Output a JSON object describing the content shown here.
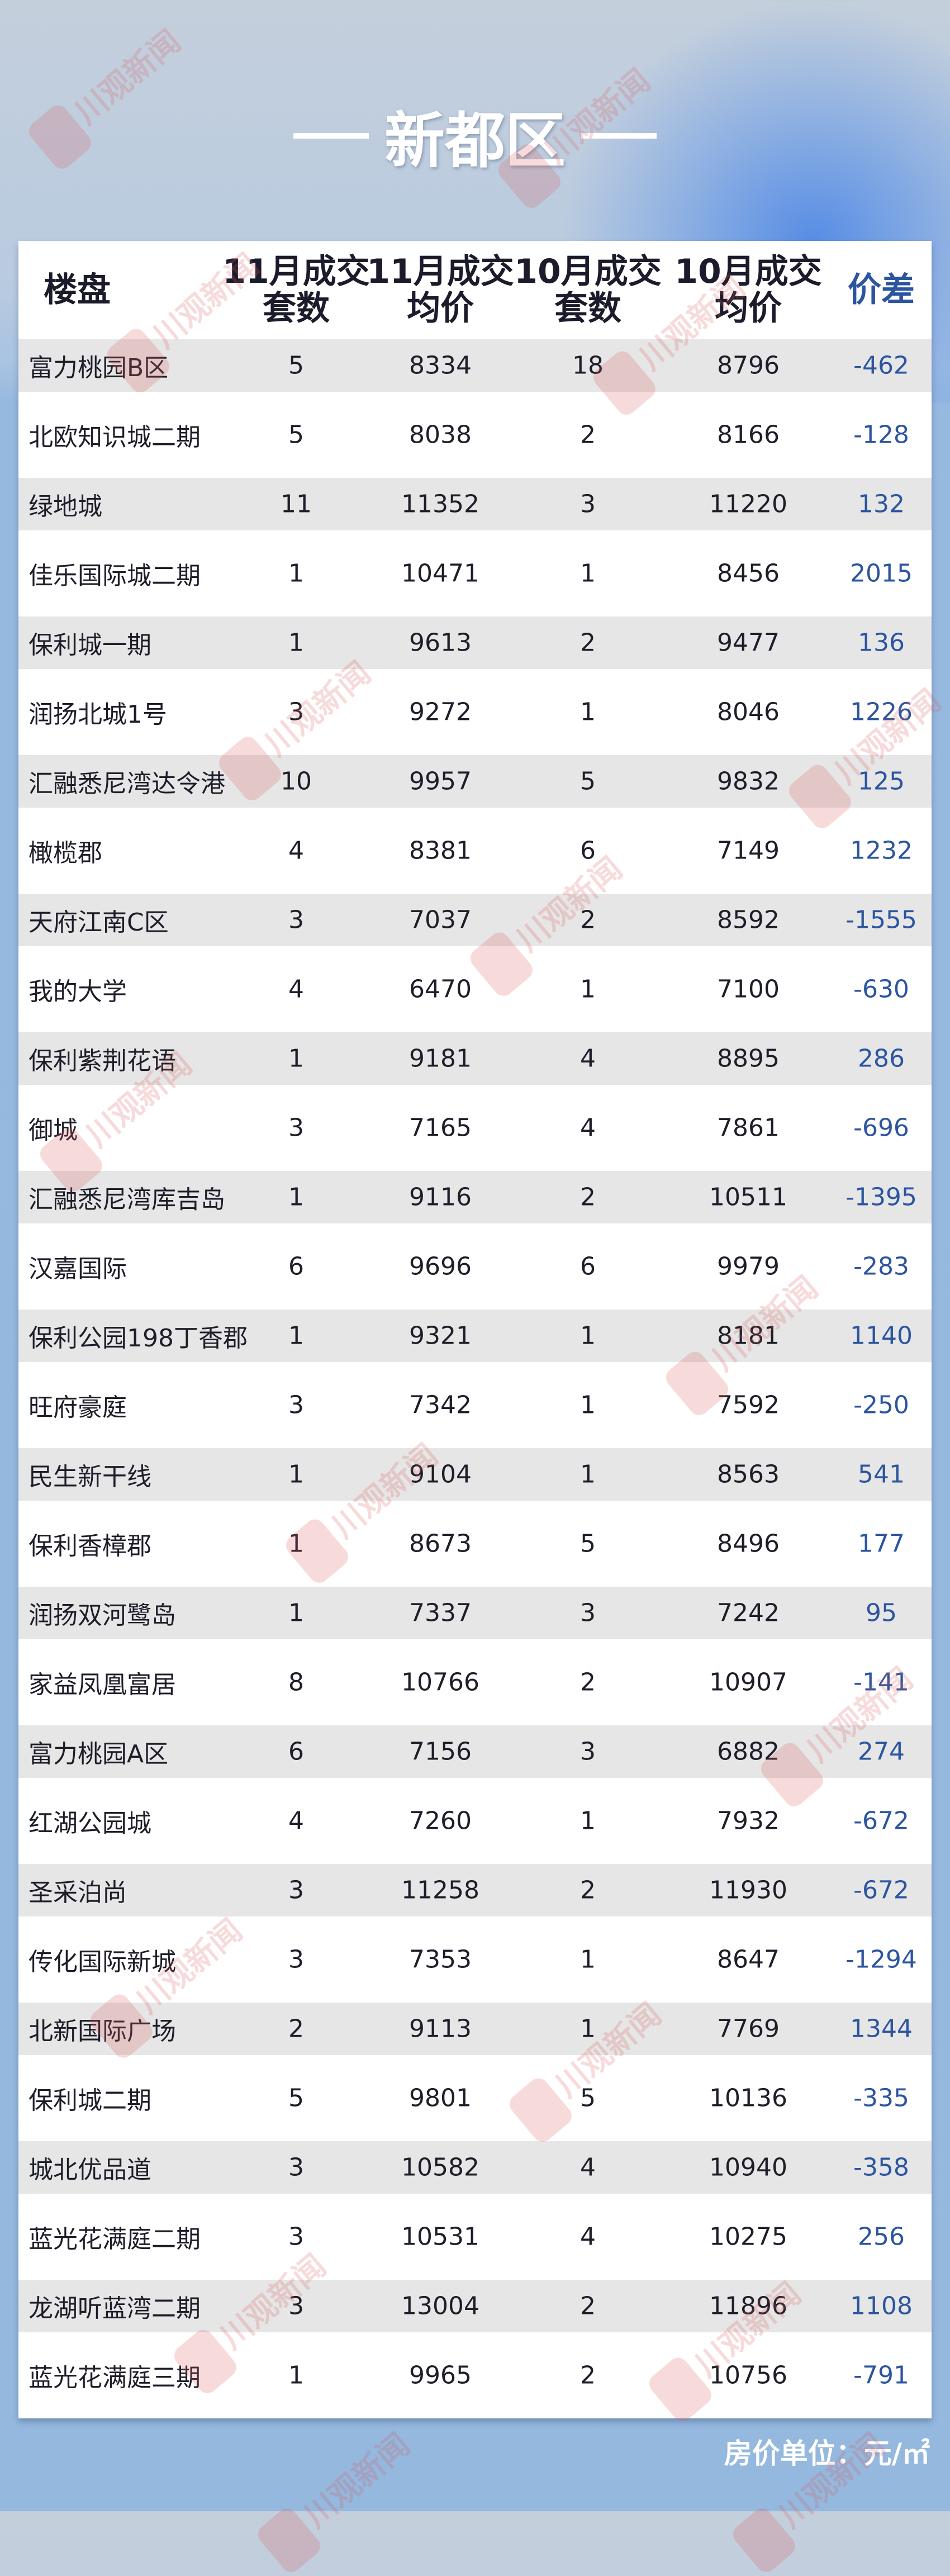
{
  "title": "新都区",
  "watermark": "川观新闻",
  "colors": {
    "diff": "#2c55a0",
    "row_alt": "#e6e6e6",
    "background": "#94b8de"
  },
  "table": {
    "headers": {
      "name": "楼盘",
      "nov_count": [
        "11月成交",
        "套数"
      ],
      "nov_price": [
        "11月成交",
        "均价"
      ],
      "oct_count": [
        "10月成交",
        "套数"
      ],
      "oct_price": [
        "10月成交",
        "均价"
      ],
      "diff": "价差"
    },
    "rows": [
      [
        "富力桃园B区",
        "5",
        "8334",
        "18",
        "8796",
        "-462"
      ],
      [
        "北欧知识城二期",
        "5",
        "8038",
        "2",
        "8166",
        "-128"
      ],
      [
        "绿地城",
        "11",
        "11352",
        "3",
        "11220",
        "132"
      ],
      [
        "佳乐国际城二期",
        "1",
        "10471",
        "1",
        "8456",
        "2015"
      ],
      [
        "保利城一期",
        "1",
        "9613",
        "2",
        "9477",
        "136"
      ],
      [
        "润扬北城1号",
        "3",
        "9272",
        "1",
        "8046",
        "1226"
      ],
      [
        "汇融悉尼湾达令港",
        "10",
        "9957",
        "5",
        "9832",
        "125"
      ],
      [
        "橄榄郡",
        "4",
        "8381",
        "6",
        "7149",
        "1232"
      ],
      [
        "天府江南C区",
        "3",
        "7037",
        "2",
        "8592",
        "-1555"
      ],
      [
        "我的大学",
        "4",
        "6470",
        "1",
        "7100",
        "-630"
      ],
      [
        "保利紫荆花语",
        "1",
        "9181",
        "4",
        "8895",
        "286"
      ],
      [
        "御城",
        "3",
        "7165",
        "4",
        "7861",
        "-696"
      ],
      [
        "汇融悉尼湾库吉岛",
        "1",
        "9116",
        "2",
        "10511",
        "-1395"
      ],
      [
        "汉嘉国际",
        "6",
        "9696",
        "6",
        "9979",
        "-283"
      ],
      [
        "保利公园198丁香郡",
        "1",
        "9321",
        "1",
        "8181",
        "1140"
      ],
      [
        "旺府豪庭",
        "3",
        "7342",
        "1",
        "7592",
        "-250"
      ],
      [
        "民生新干线",
        "1",
        "9104",
        "1",
        "8563",
        "541"
      ],
      [
        "保利香樟郡",
        "1",
        "8673",
        "5",
        "8496",
        "177"
      ],
      [
        "润扬双河鹭岛",
        "1",
        "7337",
        "3",
        "7242",
        "95"
      ],
      [
        "家益凤凰富居",
        "8",
        "10766",
        "2",
        "10907",
        "-141"
      ],
      [
        "富力桃园A区",
        "6",
        "7156",
        "3",
        "6882",
        "274"
      ],
      [
        "红湖公园城",
        "4",
        "7260",
        "1",
        "7932",
        "-672"
      ],
      [
        "圣采泊尚",
        "3",
        "11258",
        "2",
        "11930",
        "-672"
      ],
      [
        "传化国际新城",
        "3",
        "7353",
        "1",
        "8647",
        "-1294"
      ],
      [
        "北新国际广场",
        "2",
        "9113",
        "1",
        "7769",
        "1344"
      ],
      [
        "保利城二期",
        "5",
        "9801",
        "5",
        "10136",
        "-335"
      ],
      [
        "城北优品道",
        "3",
        "10582",
        "4",
        "10940",
        "-358"
      ],
      [
        "蓝光花满庭二期",
        "3",
        "10531",
        "4",
        "10275",
        "256"
      ],
      [
        "龙湖听蓝湾二期",
        "3",
        "13004",
        "2",
        "11896",
        "1108"
      ],
      [
        "蓝光花满庭三期",
        "1",
        "9965",
        "2",
        "10756",
        "-791"
      ]
    ]
  },
  "footnote": "房价单位：元/㎡"
}
